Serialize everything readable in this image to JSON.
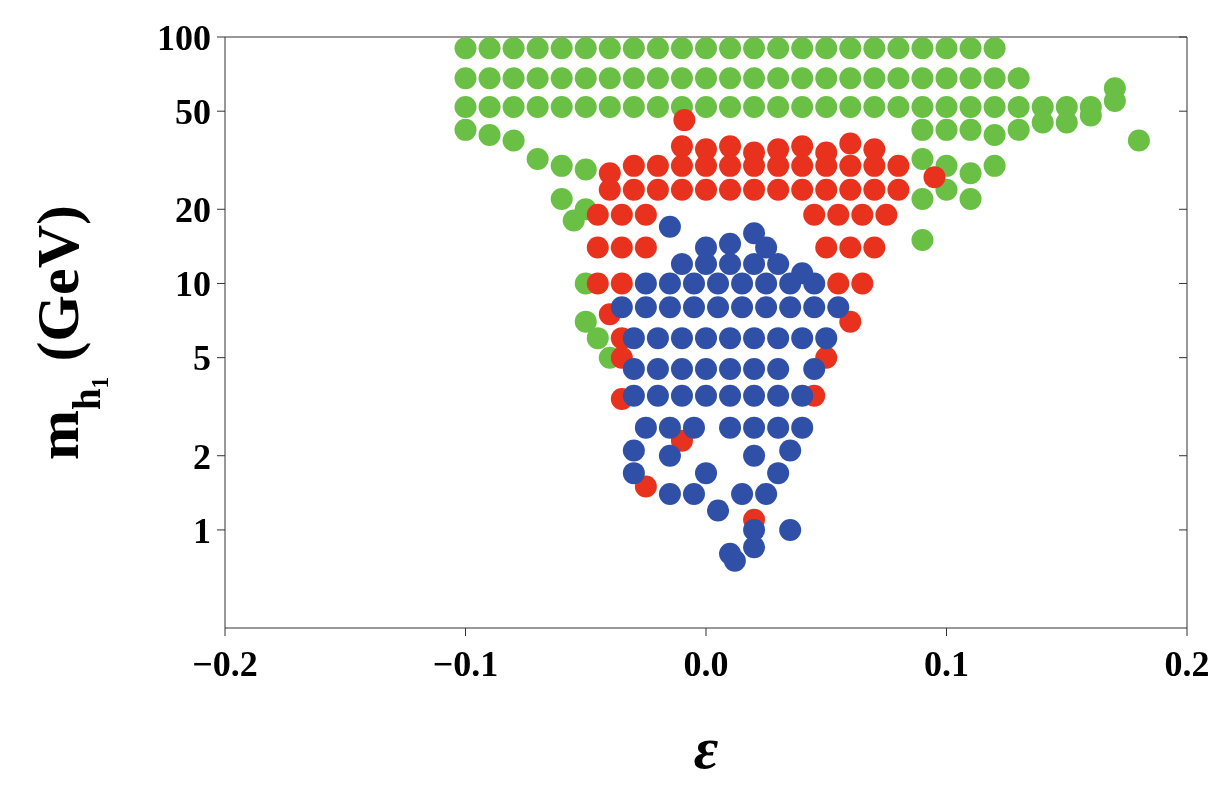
{
  "chart_data": {
    "type": "scatter",
    "xlabel": "ε",
    "ylabel": "m$_{h₁}$ (GeV)",
    "xlim": [
      -0.2,
      0.2
    ],
    "xticks": [
      {
        "value": -0.2,
        "label": "−0.2"
      },
      {
        "value": -0.1,
        "label": "−0.1"
      },
      {
        "value": 0,
        "label": "0.0"
      },
      {
        "value": 0.1,
        "label": "0.1"
      },
      {
        "value": 0.2,
        "label": "0.2"
      }
    ],
    "ylim": [
      0.4,
      100
    ],
    "yticks": [
      1,
      2,
      5,
      10,
      20,
      50,
      100
    ],
    "log": "y",
    "grid": false,
    "marker": "circle",
    "series": [
      {
        "color": "#6abf45",
        "x": [
          -0.1,
          -0.09,
          -0.08,
          -0.07,
          -0.06,
          -0.05,
          -0.04,
          -0.03,
          -0.02,
          -0.01,
          0,
          0.01,
          0.02,
          0.03,
          0.04,
          0.05,
          0.06,
          0.07,
          0.08,
          0.09,
          0.1,
          0.11,
          0.12,
          -0.1,
          -0.09,
          -0.08,
          -0.07,
          -0.06,
          -0.05,
          -0.04,
          -0.03,
          -0.02,
          -0.01,
          0,
          0.01,
          0.02,
          0.03,
          0.04,
          0.05,
          0.06,
          0.07,
          0.08,
          0.09,
          0.1,
          0.11,
          0.12,
          0.13,
          0.17,
          -0.1,
          -0.09,
          -0.08,
          -0.07,
          -0.06,
          -0.05,
          -0.04,
          -0.03,
          -0.02,
          -0.01,
          0,
          0.01,
          0.02,
          0.03,
          0.04,
          0.05,
          0.06,
          0.07,
          0.08,
          0.09,
          0.1,
          0.11,
          0.12,
          0.13,
          0.14,
          0.15,
          0.16,
          0.17,
          -0.1,
          -0.09,
          -0.08,
          0.09,
          0.1,
          0.11,
          0.12,
          0.13,
          0.14,
          0.15,
          0.16,
          0.18,
          -0.07,
          -0.06,
          -0.05,
          0.09,
          0.1,
          0.11,
          0.12,
          -0.06,
          -0.05,
          0.09,
          0.1,
          0.11,
          -0.055,
          0.09,
          -0.05,
          -0.05,
          -0.045,
          -0.04
        ],
        "values": [
          90,
          90,
          90,
          90,
          90,
          90,
          90,
          90,
          90,
          90,
          90,
          90,
          90,
          90,
          90,
          90,
          90,
          90,
          90,
          90,
          90,
          90,
          90,
          68,
          68,
          68,
          68,
          68,
          68,
          68,
          68,
          68,
          68,
          68,
          68,
          68,
          68,
          68,
          68,
          68,
          68,
          68,
          68,
          68,
          68,
          68,
          68,
          62,
          52,
          52,
          52,
          52,
          52,
          52,
          52,
          52,
          52,
          52,
          52,
          52,
          52,
          52,
          52,
          52,
          52,
          52,
          52,
          52,
          52,
          52,
          52,
          52,
          52,
          52,
          52,
          55,
          42,
          40,
          38,
          42,
          42,
          42,
          40,
          42,
          45,
          45,
          48,
          38,
          32,
          30,
          29,
          32,
          30,
          28,
          30,
          22,
          20,
          22,
          24,
          22,
          18,
          15,
          10,
          7,
          6,
          5
        ]
      },
      {
        "color": "#e8321e",
        "x": [
          -0.009,
          -0.01,
          0.0,
          0.01,
          0.02,
          0.03,
          0.04,
          0.05,
          0.06,
          0.07,
          -0.04,
          -0.03,
          -0.02,
          -0.01,
          0,
          0.01,
          0.02,
          0.03,
          0.04,
          0.05,
          0.06,
          0.07,
          0.08,
          -0.04,
          -0.03,
          -0.02,
          -0.01,
          0,
          0.01,
          0.02,
          0.03,
          0.04,
          0.05,
          0.06,
          0.07,
          0.08,
          0.095,
          -0.045,
          -0.035,
          -0.025,
          0.045,
          0.055,
          0.065,
          0.075,
          -0.045,
          -0.035,
          -0.025,
          0.05,
          0.06,
          0.07,
          -0.045,
          -0.035,
          0.055,
          0.065,
          -0.04,
          -0.035,
          0.06,
          -0.035,
          0.05,
          -0.035,
          0.045,
          -0.01,
          -0.025,
          0.02
        ],
        "values": [
          46,
          36,
          35,
          36,
          34,
          35,
          36,
          34,
          37,
          35,
          28,
          30,
          30,
          30,
          30,
          30,
          30,
          30,
          30,
          30,
          30,
          30,
          30,
          24,
          24,
          24,
          24,
          24,
          24,
          24,
          24,
          24,
          24,
          24,
          24,
          24,
          27,
          19,
          19,
          19,
          19,
          19,
          19,
          19,
          14,
          14,
          14,
          14,
          14,
          14,
          10,
          10,
          10,
          10,
          7.5,
          6,
          7,
          5,
          5,
          3.4,
          3.5,
          2.3,
          1.5,
          1.1
        ]
      },
      {
        "color": "#3050a8",
        "x": [
          -0.015,
          0.02,
          0.0,
          0.01,
          0.025,
          -0.01,
          0.0,
          0.01,
          0.02,
          0.03,
          0.04,
          -0.025,
          -0.015,
          -0.005,
          0.005,
          0.015,
          0.025,
          0.035,
          0.045,
          -0.035,
          -0.025,
          -0.015,
          -0.005,
          0.005,
          0.015,
          0.025,
          0.035,
          0.045,
          0.055,
          -0.03,
          -0.02,
          -0.01,
          0,
          0.01,
          0.02,
          0.03,
          0.04,
          0.05,
          -0.03,
          -0.02,
          -0.01,
          0,
          0.01,
          0.02,
          0.03,
          0.045,
          -0.03,
          -0.02,
          -0.01,
          0.0,
          0.01,
          0.02,
          0.03,
          0.04,
          -0.025,
          -0.015,
          -0.005,
          0.01,
          0.02,
          0.03,
          0.04,
          -0.03,
          -0.015,
          0.02,
          0.035,
          -0.03,
          0.0,
          0.03,
          -0.015,
          -0.005,
          0.015,
          0.025,
          0.005,
          0.02,
          0.035,
          0.01,
          0.02,
          0.012
        ],
        "values": [
          17,
          16,
          14,
          14.5,
          14,
          12,
          12,
          12,
          12,
          12,
          11,
          10,
          10,
          10,
          10,
          10,
          10,
          10,
          10,
          8,
          8,
          8,
          8,
          8,
          8,
          8,
          8,
          8,
          8,
          6,
          6,
          6,
          6,
          6,
          6,
          6,
          6,
          6,
          4.5,
          4.5,
          4.5,
          4.5,
          4.5,
          4.5,
          4.5,
          4.5,
          3.5,
          3.5,
          3.5,
          3.5,
          3.5,
          3.5,
          3.5,
          3.5,
          2.6,
          2.6,
          2.6,
          2.6,
          2.6,
          2.6,
          2.6,
          2.1,
          2.0,
          2.0,
          2.1,
          1.7,
          1.7,
          1.7,
          1.4,
          1.4,
          1.4,
          1.4,
          1.2,
          1.0,
          1.0,
          0.8,
          0.85,
          0.75
        ]
      }
    ]
  }
}
